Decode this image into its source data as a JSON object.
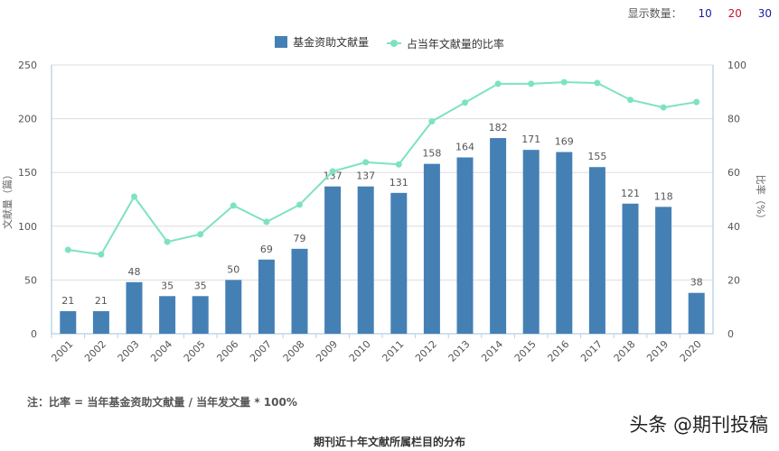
{
  "display_count": {
    "label": "显示数量：",
    "options": [
      {
        "label": "10",
        "color": "#1a1aa6"
      },
      {
        "label": "20",
        "color": "#c8102e"
      },
      {
        "label": "30",
        "color": "#1a1aa6"
      }
    ]
  },
  "note": "注：比率 = 当年基金资助文献量 / 当年发文量 * 100%",
  "caption": "期刊近十年文献所属栏目的分布",
  "watermark": "头条 @期刊投稿",
  "chart_data": {
    "type": "bar+line",
    "categories": [
      "2001",
      "2002",
      "2003",
      "2004",
      "2005",
      "2006",
      "2007",
      "2008",
      "2009",
      "2010",
      "2011",
      "2012",
      "2013",
      "2014",
      "2015",
      "2016",
      "2017",
      "2018",
      "2019",
      "2020"
    ],
    "series": [
      {
        "name": "基金资助文献量",
        "type": "bar",
        "axis": "left",
        "color": "#4580b5",
        "values": [
          21,
          21,
          48,
          35,
          35,
          50,
          69,
          79,
          137,
          137,
          131,
          158,
          164,
          182,
          171,
          169,
          155,
          121,
          118,
          38
        ]
      },
      {
        "name": "占当年文献量的比率",
        "type": "line",
        "axis": "right",
        "color": "#7de3be",
        "values": [
          31.2,
          29.5,
          51,
          34.2,
          37,
          47.7,
          41.6,
          48,
          60.4,
          63.8,
          63,
          79,
          86,
          93,
          93,
          93.6,
          93.3,
          87,
          84.2,
          86.2
        ]
      }
    ],
    "ylabel_left": "文献量（篇）",
    "ylabel_right": "比率（%）",
    "ylim_left": [
      0,
      250
    ],
    "yticks_left": [
      "0",
      "50",
      "100",
      "150",
      "200",
      "250"
    ],
    "ylim_right": [
      0,
      100
    ],
    "yticks_right": [
      "0",
      "20",
      "40",
      "60",
      "80",
      "100"
    ],
    "grid": true,
    "legend": "top-center"
  }
}
